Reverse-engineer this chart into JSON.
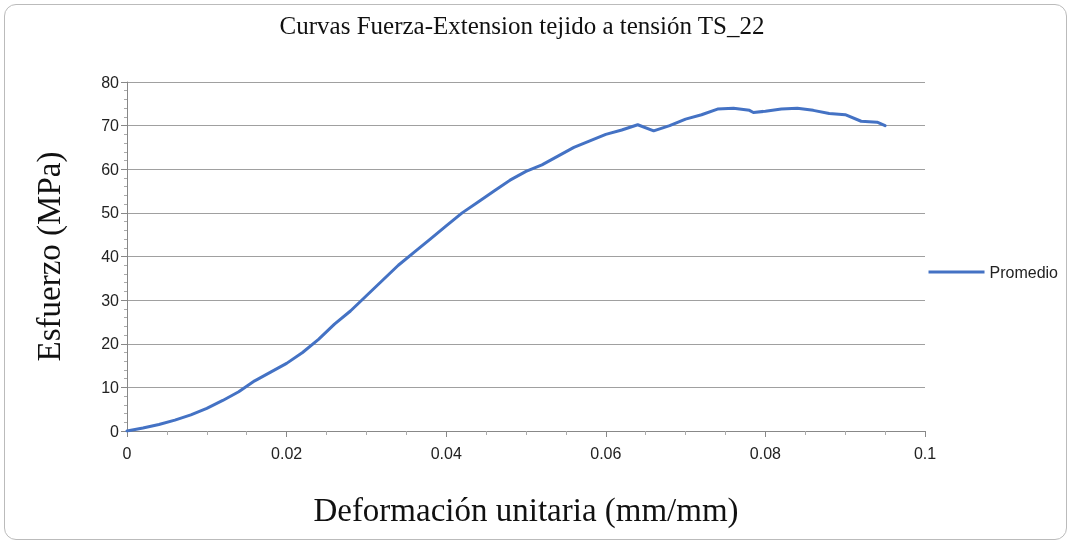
{
  "chart_data": {
    "type": "line",
    "title": "Curvas Fuerza-Extension tejido a tensión TS_22",
    "xlabel": "Deformación unitaria (mm/mm)",
    "ylabel": "Esfuerzo (MPa)",
    "x": [
      0,
      0.002,
      0.004,
      0.006,
      0.008,
      0.01,
      0.012,
      0.014,
      0.016,
      0.018,
      0.02,
      0.022,
      0.024,
      0.026,
      0.028,
      0.03,
      0.032,
      0.034,
      0.036,
      0.038,
      0.04,
      0.042,
      0.044,
      0.046,
      0.048,
      0.05,
      0.052,
      0.054,
      0.056,
      0.058,
      0.06,
      0.062,
      0.064,
      0.066,
      0.068,
      0.07,
      0.072,
      0.074,
      0.076,
      0.078,
      0.0785,
      0.08,
      0.082,
      0.084,
      0.086,
      0.088,
      0.09,
      0.092,
      0.094,
      0.095
    ],
    "series": [
      {
        "name": "Promedio",
        "color": "#4472c4",
        "values": [
          0,
          0.7,
          1.5,
          2.5,
          3.7,
          5.2,
          7,
          9,
          11.5,
          13.5,
          15.5,
          18,
          21,
          24.5,
          27.5,
          31,
          34.5,
          38,
          41,
          44,
          47,
          50,
          52.5,
          55,
          57.5,
          59.5,
          61,
          63,
          65,
          66.5,
          68,
          69,
          70.2,
          68.8,
          70,
          71.5,
          72.5,
          73.8,
          74,
          73.5,
          73,
          73.3,
          73.8,
          74,
          73.5,
          72.8,
          72.5,
          71,
          70.8,
          70
        ]
      }
    ],
    "xlim": [
      0,
      0.1
    ],
    "xticks": [
      0,
      0.02,
      0.04,
      0.06,
      0.08,
      0.1
    ],
    "ylim": [
      0,
      80
    ],
    "yticks": [
      0,
      10,
      20,
      30,
      40,
      50,
      60,
      70,
      80
    ],
    "grid": "y",
    "legend": "right",
    "marker": "none",
    "line_style": "solid"
  }
}
